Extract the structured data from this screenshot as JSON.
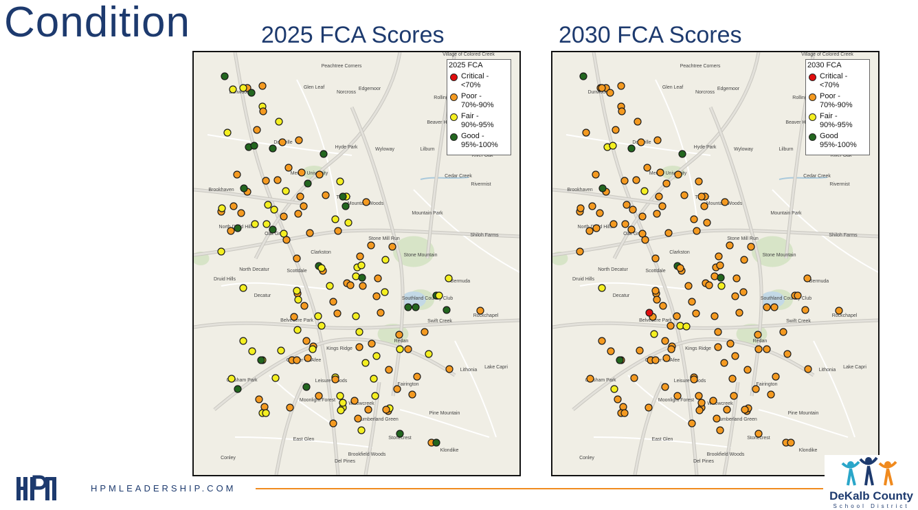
{
  "page": {
    "title": "Condition"
  },
  "colors": {
    "critical": "#e00d0d",
    "poor": "#f49a21",
    "fair": "#f4ef21",
    "good": "#23661f",
    "accent": "#f08a1e",
    "navy": "#1d3a6e"
  },
  "legend_items": [
    {
      "key": "critical",
      "label": "Critical - <70%"
    },
    {
      "key": "poor",
      "label": "Poor - 70%-90%"
    },
    {
      "key": "fair",
      "label": "Fair - 90%-95%"
    },
    {
      "key": "good",
      "label": "Good 95%-100%"
    }
  ],
  "maps": [
    {
      "title": "2025 FCA Scores",
      "legend_title": "2025 FCA",
      "legend_labels": [
        "Critical - <70%",
        "Poor - 70%-90%",
        "Fair - 90%-95%",
        "Good - 95%-100%"
      ]
    },
    {
      "title": "2030 FCA Scores",
      "legend_title": "2030 FCA",
      "legend_labels": [
        "Critical - <70%",
        "Poor - 70%-90%",
        "Fair - 90%-95%",
        "Good 95%-100%"
      ]
    }
  ],
  "place_labels": [
    "Peachtree Corners",
    "Glen Leaf",
    "Norcross",
    "Edgemoor",
    "Dunwoody",
    "Doraville",
    "Hyde Park",
    "Wyloway",
    "Lilburn",
    "River Oak",
    "Mercer University",
    "Cedar Creek",
    "Rivermist",
    "Brookhaven",
    "Tucker",
    "Mountain Woods",
    "Mountain Park",
    "North Druid Hills",
    "Oak Grove",
    "Clarkston",
    "Stone Mill Run",
    "Stone Mountain",
    "Shiloh Farms",
    "North Decatur",
    "Scottdale",
    "Druid Hills",
    "Decatur",
    "Bermuda",
    "Southland Country Club",
    "Rockchapel",
    "Belvedere Park",
    "Swift Creek",
    "Redan",
    "Kings Ridge",
    "Candler-McAfee",
    "Lithonia",
    "Lake Capri",
    "Gresham Park",
    "Leisure Woods",
    "Fairington",
    "Moonlight Forest",
    "Willowcreek",
    "Pine Mountain",
    "Cumberland Green",
    "East Glen",
    "Stonecrest",
    "Klondike",
    "Brookfield Woods",
    "Conley",
    "Del Pines",
    "Beaver Hills",
    "Rolling",
    "Village of Colored Creek"
  ],
  "footer": {
    "text": "HPMLEADERSHIP.COM",
    "logo_text": "HPM"
  },
  "district": {
    "name": "DeKalb County",
    "sub": "School District"
  },
  "schools_2025": [
    [
      "good",
      45,
      35
    ],
    [
      "poor",
      78,
      52
    ],
    [
      "fair",
      57,
      54
    ],
    [
      "fair",
      72,
      52
    ],
    [
      "poor",
      100,
      49
    ],
    [
      "good",
      84,
      59
    ],
    [
      "fair",
      100,
      79
    ],
    [
      "poor",
      101,
      86
    ],
    [
      "fair",
      49,
      117
    ],
    [
      "poor",
      92,
      113
    ],
    [
      "fair",
      124,
      101
    ],
    [
      "good",
      80,
      138
    ],
    [
      "good",
      88,
      136
    ],
    [
      "good",
      115,
      140
    ],
    [
      "poor",
      129,
      131
    ],
    [
      "poor",
      153,
      128
    ],
    [
      "good",
      189,
      148
    ],
    [
      "poor",
      63,
      178
    ],
    [
      "poor",
      78,
      203
    ],
    [
      "good",
      73,
      198
    ],
    [
      "poor",
      105,
      187
    ],
    [
      "poor",
      138,
      168
    ],
    [
      "poor",
      122,
      186
    ],
    [
      "poor",
      157,
      175
    ],
    [
      "good",
      166,
      191
    ],
    [
      "poor",
      183,
      178
    ],
    [
      "fair",
      134,
      202
    ],
    [
      "fair",
      213,
      188
    ],
    [
      "poor",
      192,
      208
    ],
    [
      "fair",
      222,
      210
    ],
    [
      "good",
      217,
      210
    ],
    [
      "poor",
      155,
      210
    ],
    [
      "poor",
      40,
      232
    ],
    [
      "poor",
      58,
      224
    ],
    [
      "fair",
      41,
      227
    ],
    [
      "poor",
      69,
      234
    ],
    [
      "fair",
      108,
      222
    ],
    [
      "fair",
      117,
      229
    ],
    [
      "poor",
      131,
      239
    ],
    [
      "poor",
      152,
      235
    ],
    [
      "poor",
      160,
      224
    ],
    [
      "good",
      221,
      224
    ],
    [
      "poor",
      251,
      218
    ],
    [
      "fair",
      206,
      243
    ],
    [
      "fair",
      225,
      248
    ],
    [
      "good",
      64,
      256
    ],
    [
      "poor",
      54,
      260
    ],
    [
      "fair",
      89,
      250
    ],
    [
      "good",
      115,
      258
    ],
    [
      "fair",
      131,
      264
    ],
    [
      "poor",
      135,
      273
    ],
    [
      "poor",
      169,
      263
    ],
    [
      "poor",
      210,
      260
    ],
    [
      "fair",
      40,
      290
    ],
    [
      "fair",
      106,
      250
    ],
    [
      "poor",
      150,
      300
    ],
    [
      "good",
      182,
      311
    ],
    [
      "poor",
      188,
      318
    ],
    [
      "fair",
      186,
      314
    ],
    [
      "fair",
      198,
      340
    ],
    [
      "poor",
      223,
      336
    ],
    [
      "poor",
      228,
      339
    ],
    [
      "fair",
      236,
      326
    ],
    [
      "fair",
      238,
      313
    ],
    [
      "fair",
      279,
      302
    ],
    [
      "poor",
      258,
      281
    ],
    [
      "poor",
      289,
      283
    ],
    [
      "fair",
      244,
      310
    ],
    [
      "poor",
      242,
      297
    ],
    [
      "good",
      245,
      328
    ],
    [
      "poor",
      246,
      340
    ],
    [
      "poor",
      268,
      329
    ],
    [
      "poor",
      209,
      380
    ],
    [
      "poor",
      151,
      351
    ],
    [
      "fair",
      72,
      343
    ],
    [
      "fair",
      152,
      360
    ],
    [
      "fair",
      150,
      347
    ],
    [
      "poor",
      203,
      363
    ],
    [
      "poor",
      266,
      355
    ],
    [
      "fair",
      278,
      349
    ],
    [
      "good",
      312,
      371
    ],
    [
      "good",
      323,
      371
    ],
    [
      "fair",
      371,
      329
    ],
    [
      "poor",
      272,
      379
    ],
    [
      "fair",
      236,
      384
    ],
    [
      "fair",
      181,
      384
    ],
    [
      "poor",
      161,
      369
    ],
    [
      "poor",
      146,
      385
    ],
    [
      "fair",
      186,
      398
    ],
    [
      "fair",
      151,
      404
    ],
    [
      "poor",
      174,
      428
    ],
    [
      "poor",
      164,
      420
    ],
    [
      "fair",
      241,
      407
    ],
    [
      "good",
      353,
      354
    ],
    [
      "fair",
      357,
      354
    ],
    [
      "poor",
      336,
      407
    ],
    [
      "poor",
      299,
      411
    ],
    [
      "fair",
      300,
      432
    ],
    [
      "poor",
      312,
      432
    ],
    [
      "fair",
      342,
      439
    ],
    [
      "poor",
      372,
      461
    ],
    [
      "poor",
      284,
      462
    ],
    [
      "fair",
      266,
      442
    ],
    [
      "fair",
      250,
      452
    ],
    [
      "poor",
      241,
      429
    ],
    [
      "poor",
      259,
      424
    ],
    [
      "good",
      368,
      375
    ],
    [
      "poor",
      417,
      376
    ],
    [
      "fair",
      72,
      420
    ],
    [
      "fair",
      85,
      435
    ],
    [
      "fair",
      100,
      448
    ],
    [
      "good",
      98,
      448
    ],
    [
      "fair",
      127,
      434
    ],
    [
      "poor",
      143,
      448
    ],
    [
      "fair",
      119,
      474
    ],
    [
      "poor",
      150,
      448
    ],
    [
      "poor",
      166,
      445
    ],
    [
      "fair",
      173,
      432
    ],
    [
      "fair",
      206,
      473
    ],
    [
      "poor",
      206,
      476
    ],
    [
      "fair",
      213,
      500
    ],
    [
      "good",
      164,
      487
    ],
    [
      "fair",
      55,
      475
    ],
    [
      "good",
      64,
      490
    ],
    [
      "poor",
      95,
      505
    ],
    [
      "poor",
      103,
      516
    ],
    [
      "fair",
      100,
      525
    ],
    [
      "fair",
      105,
      525
    ],
    [
      "poor",
      140,
      517
    ],
    [
      "poor",
      182,
      500
    ],
    [
      "fair",
      217,
      517
    ],
    [
      "fair",
      214,
      521
    ],
    [
      "poor",
      203,
      540
    ],
    [
      "poor",
      234,
      507
    ],
    [
      "poor",
      254,
      520
    ],
    [
      "poor",
      239,
      533
    ],
    [
      "fair",
      244,
      550
    ],
    [
      "poor",
      283,
      522
    ],
    [
      "good",
      300,
      555
    ],
    [
      "poor",
      346,
      568
    ],
    [
      "good",
      353,
      568
    ],
    [
      "poor",
      325,
      472
    ],
    [
      "poor",
      318,
      498
    ],
    [
      "poor",
      296,
      490
    ],
    [
      "fair",
      264,
      500
    ],
    [
      "fair",
      262,
      475
    ],
    [
      "fair",
      217,
      510
    ],
    [
      "fair",
      285,
      518
    ],
    [
      "poor",
      280,
      520
    ]
  ],
  "schools_2030": [
    [
      "good",
      45,
      35
    ],
    [
      "poor",
      78,
      52
    ],
    [
      "poor",
      70,
      52
    ],
    [
      "poor",
      72,
      52
    ],
    [
      "poor",
      100,
      49
    ],
    [
      "poor",
      84,
      59
    ],
    [
      "poor",
      100,
      79
    ],
    [
      "poor",
      101,
      86
    ],
    [
      "poor",
      49,
      117
    ],
    [
      "poor",
      92,
      113
    ],
    [
      "poor",
      124,
      101
    ],
    [
      "fair",
      80,
      138
    ],
    [
      "fair",
      88,
      136
    ],
    [
      "good",
      115,
      140
    ],
    [
      "poor",
      129,
      131
    ],
    [
      "poor",
      153,
      128
    ],
    [
      "good",
      189,
      148
    ],
    [
      "poor",
      63,
      178
    ],
    [
      "poor",
      78,
      203
    ],
    [
      "good",
      73,
      198
    ],
    [
      "poor",
      105,
      187
    ],
    [
      "poor",
      138,
      168
    ],
    [
      "poor",
      122,
      186
    ],
    [
      "poor",
      157,
      175
    ],
    [
      "poor",
      166,
      191
    ],
    [
      "poor",
      183,
      178
    ],
    [
      "fair",
      134,
      202
    ],
    [
      "poor",
      213,
      188
    ],
    [
      "poor",
      192,
      208
    ],
    [
      "poor",
      222,
      210
    ],
    [
      "poor",
      217,
      210
    ],
    [
      "poor",
      155,
      210
    ],
    [
      "poor",
      40,
      232
    ],
    [
      "poor",
      58,
      224
    ],
    [
      "poor",
      41,
      227
    ],
    [
      "poor",
      69,
      234
    ],
    [
      "poor",
      108,
      222
    ],
    [
      "poor",
      117,
      229
    ],
    [
      "poor",
      131,
      239
    ],
    [
      "poor",
      152,
      235
    ],
    [
      "poor",
      160,
      224
    ],
    [
      "poor",
      221,
      224
    ],
    [
      "poor",
      251,
      218
    ],
    [
      "poor",
      206,
      243
    ],
    [
      "poor",
      225,
      248
    ],
    [
      "poor",
      64,
      256
    ],
    [
      "poor",
      54,
      260
    ],
    [
      "poor",
      89,
      250
    ],
    [
      "poor",
      115,
      258
    ],
    [
      "poor",
      131,
      264
    ],
    [
      "poor",
      135,
      273
    ],
    [
      "poor",
      169,
      263
    ],
    [
      "poor",
      210,
      260
    ],
    [
      "poor",
      40,
      290
    ],
    [
      "poor",
      106,
      250
    ],
    [
      "poor",
      150,
      300
    ],
    [
      "good",
      182,
      311
    ],
    [
      "poor",
      188,
      318
    ],
    [
      "poor",
      186,
      314
    ],
    [
      "poor",
      198,
      340
    ],
    [
      "poor",
      223,
      336
    ],
    [
      "poor",
      228,
      339
    ],
    [
      "poor",
      236,
      326
    ],
    [
      "poor",
      238,
      313
    ],
    [
      "poor",
      279,
      302
    ],
    [
      "poor",
      258,
      281
    ],
    [
      "poor",
      289,
      283
    ],
    [
      "poor",
      244,
      310
    ],
    [
      "poor",
      242,
      297
    ],
    [
      "good",
      245,
      328
    ],
    [
      "fair",
      246,
      340
    ],
    [
      "poor",
      268,
      329
    ],
    [
      "poor",
      209,
      380
    ],
    [
      "poor",
      151,
      351
    ],
    [
      "fair",
      72,
      343
    ],
    [
      "poor",
      152,
      360
    ],
    [
      "poor",
      150,
      347
    ],
    [
      "poor",
      203,
      363
    ],
    [
      "poor",
      266,
      355
    ],
    [
      "poor",
      278,
      349
    ],
    [
      "poor",
      312,
      371
    ],
    [
      "poor",
      323,
      371
    ],
    [
      "poor",
      371,
      329
    ],
    [
      "poor",
      272,
      379
    ],
    [
      "poor",
      236,
      384
    ],
    [
      "poor",
      181,
      384
    ],
    [
      "poor",
      161,
      369
    ],
    [
      "poor",
      146,
      385
    ],
    [
      "fair",
      186,
      398
    ],
    [
      "critical",
      141,
      379
    ],
    [
      "poor",
      174,
      428
    ],
    [
      "poor",
      164,
      420
    ],
    [
      "poor",
      241,
      407
    ],
    [
      "poor",
      353,
      354
    ],
    [
      "poor",
      357,
      354
    ],
    [
      "poor",
      336,
      407
    ],
    [
      "poor",
      299,
      411
    ],
    [
      "poor",
      300,
      432
    ],
    [
      "poor",
      312,
      432
    ],
    [
      "poor",
      342,
      439
    ],
    [
      "poor",
      372,
      461
    ],
    [
      "poor",
      284,
      462
    ],
    [
      "poor",
      266,
      442
    ],
    [
      "poor",
      250,
      452
    ],
    [
      "poor",
      241,
      429
    ],
    [
      "poor",
      259,
      424
    ],
    [
      "poor",
      368,
      375
    ],
    [
      "poor",
      417,
      376
    ],
    [
      "poor",
      72,
      420
    ],
    [
      "poor",
      85,
      435
    ],
    [
      "poor",
      100,
      448
    ],
    [
      "good",
      98,
      448
    ],
    [
      "poor",
      127,
      434
    ],
    [
      "poor",
      143,
      448
    ],
    [
      "poor",
      119,
      474
    ],
    [
      "poor",
      150,
      448
    ],
    [
      "poor",
      166,
      445
    ],
    [
      "poor",
      173,
      432
    ],
    [
      "poor",
      206,
      473
    ],
    [
      "poor",
      206,
      476
    ],
    [
      "poor",
      213,
      500
    ],
    [
      "poor",
      164,
      487
    ],
    [
      "poor",
      55,
      475
    ],
    [
      "fair",
      90,
      490
    ],
    [
      "poor",
      95,
      505
    ],
    [
      "poor",
      103,
      516
    ],
    [
      "poor",
      100,
      525
    ],
    [
      "poor",
      105,
      525
    ],
    [
      "poor",
      140,
      517
    ],
    [
      "poor",
      182,
      500
    ],
    [
      "poor",
      217,
      517
    ],
    [
      "poor",
      214,
      521
    ],
    [
      "poor",
      203,
      540
    ],
    [
      "poor",
      234,
      507
    ],
    [
      "poor",
      254,
      520
    ],
    [
      "poor",
      239,
      533
    ],
    [
      "poor",
      244,
      550
    ],
    [
      "poor",
      283,
      522
    ],
    [
      "poor",
      300,
      555
    ],
    [
      "poor",
      340,
      568
    ],
    [
      "poor",
      347,
      568
    ],
    [
      "poor",
      325,
      472
    ],
    [
      "poor",
      318,
      498
    ],
    [
      "poor",
      296,
      490
    ],
    [
      "poor",
      264,
      500
    ],
    [
      "poor",
      262,
      475
    ],
    [
      "poor",
      217,
      510
    ],
    [
      "poor",
      285,
      518
    ],
    [
      "poor",
      280,
      520
    ],
    [
      "fair",
      195,
      399
    ],
    [
      "fair",
      148,
      410
    ],
    [
      "poor",
      172,
      398
    ]
  ]
}
